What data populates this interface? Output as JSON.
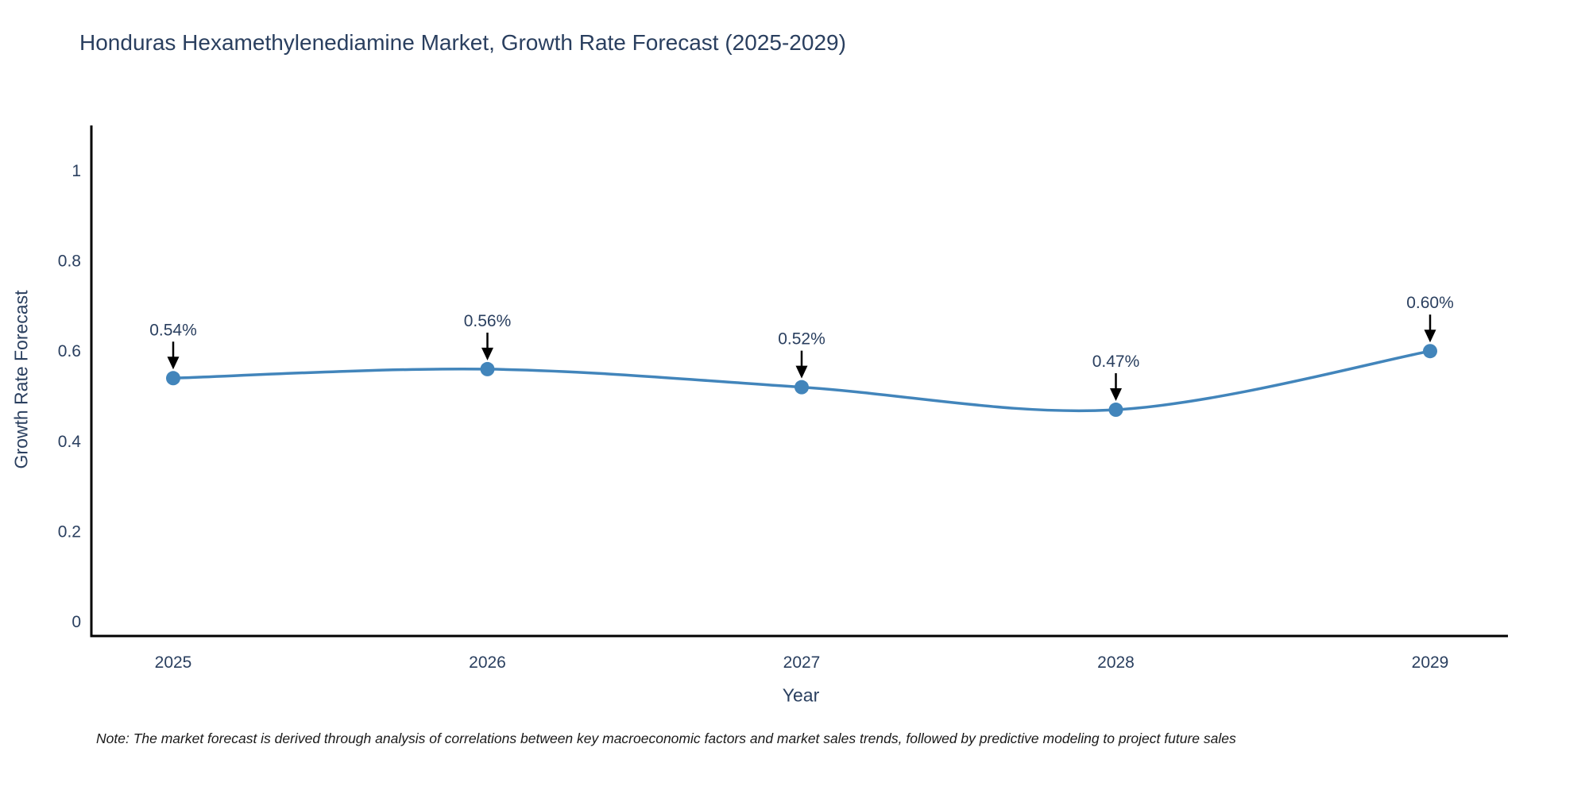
{
  "note": "Note: The market forecast is derived through analysis of correlations between key macroeconomic factors and market sales trends, followed by predictive modeling to project future sales",
  "chart_data": {
    "type": "line",
    "title": "Honduras Hexamethylenediamine Market, Growth Rate Forecast (2025-2029)",
    "xlabel": "Year",
    "ylabel": "Growth Rate Forecast",
    "categories": [
      "2025",
      "2026",
      "2027",
      "2028",
      "2029"
    ],
    "values": [
      0.54,
      0.56,
      0.52,
      0.47,
      0.6
    ],
    "point_labels": [
      "0.54%",
      "0.56%",
      "0.52%",
      "0.47%",
      "0.60%"
    ],
    "yticks": [
      0,
      0.2,
      0.4,
      0.6,
      0.8,
      1
    ],
    "ylim": [
      0,
      1
    ],
    "grid": false,
    "legend": "none",
    "line_color": "#4285bb",
    "marker_color": "#4285bb",
    "axis_color": "#000000",
    "annotation_arrow_color": "#000000",
    "text_color": "#2a3f5f"
  }
}
